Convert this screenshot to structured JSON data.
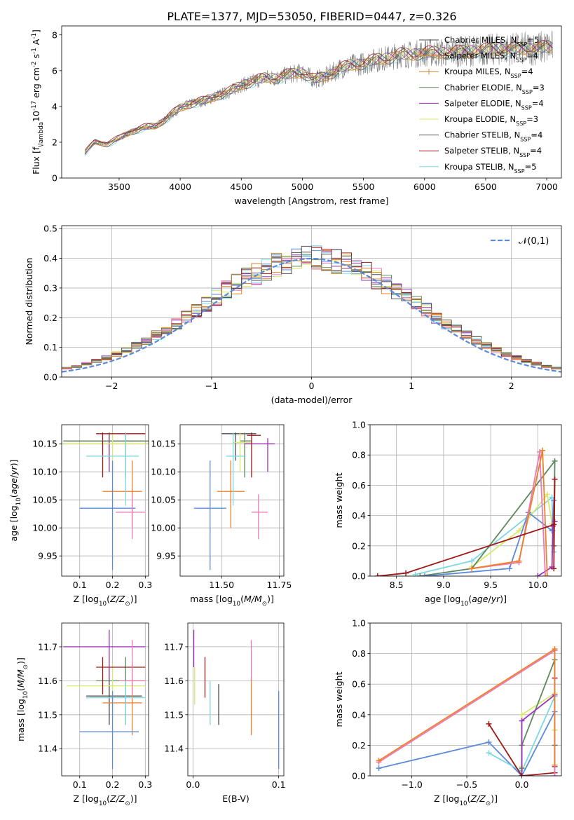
{
  "figure_title": "PLATE=1377, MJD=53050, FIBERID=0447, z=0.326",
  "colors": {
    "Chabrier MILES": "#4a4a4a",
    "Salpeter MILES": "#ef7f28",
    "Kroupa MILES": "#c6862d",
    "Chabrier ELODIE": "#5c8a5c",
    "Salpeter ELODIE": "#9b35b8",
    "Kroupa ELODIE": "#d8e86a",
    "Chabrier STELIB": "#555555",
    "Salpeter STELIB": "#a01818",
    "Kroupa STELIB": "#7fd7e0",
    "extra_1": "#5b8bd9",
    "extra_2": "#e87bb8",
    "gaussian": "#5b8bd9",
    "observed": "#808080"
  },
  "chart_data": [
    {
      "type": "line",
      "id": "spectrum",
      "xlabel": "wavelength [Angstrom, rest frame]",
      "ylabel": "Flux [f$_\\lambda$10$^{-17}$ erg cm$^{-2}$ s$^{-1}$ A$^{-1}$]",
      "xlim": [
        3030,
        7120
      ],
      "ylim": [
        0,
        8.5
      ],
      "xticks": [
        3500,
        4000,
        4500,
        5000,
        5500,
        6000,
        6500,
        7000
      ],
      "yticks": [
        0,
        2,
        4,
        6,
        8
      ],
      "wavelength_range": [
        3220,
        7050
      ],
      "continuum": {
        "x": [
          3220,
          3300,
          3400,
          3500,
          3600,
          3700,
          3800,
          3900,
          4000,
          4100,
          4200,
          4300,
          4400,
          4500,
          4600,
          4700,
          4800,
          4900,
          5000,
          5100,
          5200,
          5300,
          5400,
          5500,
          5600,
          5700,
          5800,
          5900,
          6000,
          6200,
          6400,
          6600,
          6800,
          7000,
          7050
        ],
        "y": [
          1.4,
          2.0,
          1.9,
          2.2,
          2.6,
          2.8,
          2.9,
          3.4,
          3.9,
          4.2,
          4.3,
          4.6,
          4.8,
          5.2,
          5.4,
          5.6,
          5.6,
          5.8,
          5.9,
          5.5,
          5.7,
          6.1,
          6.3,
          6.4,
          6.6,
          6.7,
          6.9,
          6.9,
          7.0,
          7.0,
          7.1,
          7.2,
          7.2,
          7.3,
          7.3
        ]
      },
      "legend": [
        {
          "label": "Chabrier MILES, N$_{SSP}$=5"
        },
        {
          "label": "Salpeter MILES, N$_{SSP}$=4"
        },
        {
          "label": "Kroupa MILES, N$_{SSP}$=4"
        },
        {
          "label": "Chabrier ELODIE, N$_{SSP}$=3"
        },
        {
          "label": "Salpeter ELODIE, N$_{SSP}$=4"
        },
        {
          "label": "Kroupa ELODIE, N$_{SSP}$=3"
        },
        {
          "label": "Chabrier STELIB, N$_{SSP}$=4"
        },
        {
          "label": "Salpeter STELIB, N$_{SSP}$=4"
        },
        {
          "label": "Kroupa STELIB, N$_{SSP}$=5"
        }
      ],
      "legend_placement": "upper right"
    },
    {
      "type": "line",
      "id": "residuals",
      "xlabel": "(data-model)/error",
      "ylabel": "Normed distribution",
      "xlim": [
        -2.5,
        2.5
      ],
      "ylim": [
        0,
        0.51
      ],
      "xticks": [
        -2,
        -1,
        0,
        1,
        2
      ],
      "yticks": [
        0.0,
        0.1,
        0.2,
        0.3,
        0.4,
        0.5
      ],
      "grid": true,
      "bin_width": 0.1,
      "series_note": "step histograms of normalized residuals for 11 fits",
      "gaussian_label": "$\\mathcal{N}(0,1)$",
      "legend_placement": "upper right"
    },
    {
      "type": "scatter",
      "id": "age_vs_Z",
      "xlabel": "Z [log$_{10}$($Z/Z_\\odot$)]",
      "ylabel": "age  [log$_{10}$($age/yr$)]",
      "xlim": [
        0.045,
        0.31
      ],
      "ylim": [
        9.914,
        10.184
      ],
      "xticks": [
        0.1,
        0.2,
        0.3
      ],
      "yticks": [
        9.95,
        10.0,
        10.05,
        10.1,
        10.15
      ],
      "grid": true,
      "points": [
        {
          "c": "Chabrier MILES",
          "x": 0.19,
          "y": 10.155,
          "xe": [
            0.06,
            0.31
          ],
          "ye": [
            10.12,
            10.17
          ]
        },
        {
          "c": "Salpeter MILES",
          "x": 0.26,
          "y": 10.065,
          "xe": [
            0.17,
            0.29
          ],
          "ye": [
            10.0,
            10.12
          ]
        },
        {
          "c": "Chabrier ELODIE",
          "x": 0.24,
          "y": 10.155,
          "xe": [
            0.05,
            0.31
          ],
          "ye": [
            10.09,
            10.17
          ]
        },
        {
          "c": "Salpeter ELODIE",
          "x": 0.19,
          "y": 10.15,
          "xe": [
            0.05,
            0.31
          ],
          "ye": [
            10.1,
            10.16
          ]
        },
        {
          "c": "Kroupa ELODIE",
          "x": 0.2,
          "y": 10.15,
          "xe": [
            0.05,
            0.31
          ],
          "ye": [
            10.1,
            10.17
          ]
        },
        {
          "c": "Salpeter STELIB",
          "x": 0.17,
          "y": 10.168,
          "xe": [
            0.15,
            0.3
          ],
          "ye": [
            10.09,
            10.17
          ]
        },
        {
          "c": "Kroupa STELIB",
          "x": 0.24,
          "y": 10.128,
          "xe": [
            0.12,
            0.28
          ],
          "ye": [
            10.04,
            10.17
          ]
        },
        {
          "c": "extra_1",
          "x": 0.2,
          "y": 10.035,
          "xe": [
            0.1,
            0.27
          ],
          "ye": [
            9.925,
            10.12
          ]
        },
        {
          "c": "extra_2",
          "x": 0.26,
          "y": 10.028,
          "xe": [
            0.21,
            0.3
          ],
          "ye": [
            9.98,
            10.06
          ]
        }
      ]
    },
    {
      "type": "scatter",
      "id": "age_vs_mass",
      "xlabel": "mass [log$_{10}$($M/M_\\odot$)]",
      "ylabel": "",
      "xlim": [
        11.32,
        11.77
      ],
      "ylim": [
        9.914,
        10.184
      ],
      "xticks": [
        11.5,
        11.75
      ],
      "yticks": [
        9.95,
        10.0,
        10.05,
        10.1,
        10.15
      ],
      "grid": true,
      "points": [
        {
          "c": "Chabrier MILES",
          "x": 11.56,
          "y": 10.168,
          "xe": [
            11.5,
            11.65
          ],
          "ye": [
            10.12,
            10.17
          ]
        },
        {
          "c": "Salpeter MILES",
          "x": 11.54,
          "y": 10.065,
          "xe": [
            11.48,
            11.6
          ],
          "ye": [
            10.0,
            10.12
          ]
        },
        {
          "c": "Chabrier ELODIE",
          "x": 11.6,
          "y": 10.155,
          "xe": [
            11.58,
            11.63
          ],
          "ye": [
            10.09,
            10.17
          ]
        },
        {
          "c": "Salpeter ELODIE",
          "x": 11.7,
          "y": 10.15,
          "xe": [
            11.6,
            11.73
          ],
          "ye": [
            10.1,
            10.16
          ]
        },
        {
          "c": "Kroupa ELODIE",
          "x": 11.58,
          "y": 10.152,
          "xe": [
            11.55,
            11.63
          ],
          "ye": [
            10.1,
            10.17
          ]
        },
        {
          "c": "Salpeter STELIB",
          "x": 11.63,
          "y": 10.165,
          "xe": [
            11.61,
            11.67
          ],
          "ye": [
            10.09,
            10.17
          ]
        },
        {
          "c": "Kroupa STELIB",
          "x": 11.55,
          "y": 10.128,
          "xe": [
            11.52,
            11.6
          ],
          "ye": [
            10.04,
            10.17
          ]
        },
        {
          "c": "extra_1",
          "x": 11.45,
          "y": 10.035,
          "xe": [
            11.38,
            11.52
          ],
          "ye": [
            9.925,
            10.12
          ]
        },
        {
          "c": "extra_2",
          "x": 11.66,
          "y": 10.028,
          "xe": [
            11.63,
            11.7
          ],
          "ye": [
            9.98,
            10.06
          ]
        }
      ]
    },
    {
      "type": "line",
      "id": "weight_vs_age",
      "xlabel": "age  [log$_{10}$($age/yr$)]",
      "ylabel": "mass weight",
      "xlim": [
        8.22,
        10.25
      ],
      "ylim": [
        0,
        1.0
      ],
      "xticks": [
        8.5,
        9.0,
        9.5,
        10.0
      ],
      "yticks": [
        0.0,
        0.2,
        0.4,
        0.6,
        0.8,
        1.0
      ],
      "grid": true,
      "series": [
        {
          "c": "Kroupa STELIB",
          "x": [
            8.7,
            9.3,
            10.15,
            10.16,
            10.17
          ],
          "y": [
            0.01,
            0.1,
            0.52,
            0.3,
            0.16
          ]
        },
        {
          "c": "Kroupa ELODIE",
          "x": [
            9.3,
            9.8,
            10.1,
            10.15
          ],
          "y": [
            0.06,
            0.3,
            0.54,
            0.35
          ]
        },
        {
          "c": "Chabrier ELODIE",
          "x": [
            8.75,
            9.3,
            10.18,
            10.17
          ],
          "y": [
            0.0,
            0.05,
            0.76,
            0.2
          ]
        },
        {
          "c": "extra_1",
          "x": [
            8.8,
            9.7,
            9.9,
            10.15,
            10.17
          ],
          "y": [
            0.0,
            0.05,
            0.42,
            0.3,
            0.5
          ]
        },
        {
          "c": "Salpeter ELODIE",
          "x": [
            10.0,
            10.15,
            10.16,
            10.18
          ],
          "y": [
            0.0,
            0.06,
            0.33,
            0.36
          ]
        },
        {
          "c": "extra_2",
          "x": [
            9.3,
            9.8,
            10.02,
            10.08
          ],
          "y": [
            0.05,
            0.09,
            0.82,
            0.0
          ]
        },
        {
          "c": "Salpeter MILES",
          "x": [
            9.3,
            9.8,
            10.05,
            10.1
          ],
          "y": [
            0.05,
            0.1,
            0.83,
            0.0
          ]
        },
        {
          "c": "Salpeter STELIB",
          "x": [
            8.3,
            8.6,
            10.17,
            10.18,
            10.17
          ],
          "y": [
            0.0,
            0.02,
            0.34,
            0.64,
            0.05
          ]
        }
      ]
    },
    {
      "type": "scatter",
      "id": "mass_vs_Z",
      "xlabel": "Z [log$_{10}$($Z/Z_\\odot$)]",
      "ylabel": "mass [log$_{10}$($M/M_\\odot$)]",
      "xlim": [
        0.045,
        0.31
      ],
      "ylim": [
        11.32,
        11.77
      ],
      "xticks": [
        0.1,
        0.2,
        0.3
      ],
      "yticks": [
        11.4,
        11.5,
        11.6,
        11.7
      ],
      "grid": true,
      "points": [
        {
          "c": "Chabrier MILES",
          "x": 0.19,
          "y": 11.555,
          "xe": [
            0.12,
            0.29
          ],
          "ye": [
            11.47,
            11.64
          ]
        },
        {
          "c": "Salpeter MILES",
          "x": 0.26,
          "y": 11.535,
          "xe": [
            0.17,
            0.29
          ],
          "ye": [
            11.44,
            11.65
          ]
        },
        {
          "c": "Chabrier ELODIE",
          "x": 0.24,
          "y": 11.6,
          "xe": [
            0.15,
            0.3
          ],
          "ye": [
            11.47,
            11.67
          ]
        },
        {
          "c": "Salpeter ELODIE",
          "x": 0.19,
          "y": 11.7,
          "xe": [
            0.05,
            0.3
          ],
          "ye": [
            11.6,
            11.75
          ]
        },
        {
          "c": "Kroupa ELODIE",
          "x": 0.2,
          "y": 11.585,
          "xe": [
            0.06,
            0.3
          ],
          "ye": [
            11.5,
            11.65
          ]
        },
        {
          "c": "Salpeter STELIB",
          "x": 0.17,
          "y": 11.64,
          "xe": [
            0.15,
            0.3
          ],
          "ye": [
            11.56,
            11.67
          ]
        },
        {
          "c": "Kroupa STELIB",
          "x": 0.24,
          "y": 11.55,
          "xe": [
            0.12,
            0.3
          ],
          "ye": [
            11.47,
            11.6
          ]
        },
        {
          "c": "extra_1",
          "x": 0.2,
          "y": 11.45,
          "xe": [
            0.1,
            0.28
          ],
          "ye": [
            11.34,
            11.57
          ]
        },
        {
          "c": "extra_2",
          "x": 0.26,
          "y": 11.6,
          "xe": [
            0.22,
            0.3
          ],
          "ye": [
            11.56,
            11.72
          ]
        }
      ]
    },
    {
      "type": "scatter",
      "id": "mass_vs_EBV",
      "xlabel": "E(B-V)",
      "ylabel": "",
      "xlim": [
        -0.006,
        0.106
      ],
      "ylim": [
        11.32,
        11.77
      ],
      "xticks": [
        0.0,
        0.1
      ],
      "yticks": [
        11.4,
        11.5,
        11.6,
        11.7
      ],
      "grid": true,
      "segments": [
        {
          "c": "Salpeter ELODIE",
          "x": 0.001,
          "y1": 11.64,
          "y2": 11.75
        },
        {
          "c": "Kroupa ELODIE",
          "x": 0.002,
          "y1": 11.53,
          "y2": 11.64
        },
        {
          "c": "Salpeter STELIB",
          "x": 0.014,
          "y1": 11.55,
          "y2": 11.67
        },
        {
          "c": "Kroupa STELIB",
          "x": 0.02,
          "y1": 11.47,
          "y2": 11.6
        },
        {
          "c": "Chabrier MILES",
          "x": 0.03,
          "y1": 11.47,
          "y2": 11.59
        },
        {
          "c": "Salpeter MILES",
          "x": 0.068,
          "y1": 11.44,
          "y2": 11.61
        },
        {
          "c": "extra_2",
          "x": 0.068,
          "y1": 11.6,
          "y2": 11.72
        },
        {
          "c": "extra_1",
          "x": 0.1,
          "y1": 11.34,
          "y2": 11.57
        }
      ]
    },
    {
      "type": "line",
      "id": "weight_vs_Z",
      "xlabel": "Z [log$_{10}$($Z/Z_\\odot$)]",
      "ylabel": "mass weight",
      "xlim": [
        -1.38,
        0.36
      ],
      "ylim": [
        0,
        1.0
      ],
      "xticks": [
        -1.0,
        -0.5,
        0.0
      ],
      "yticks": [
        0.0,
        0.2,
        0.4,
        0.6,
        0.8,
        1.0
      ],
      "grid": true,
      "series": [
        {
          "c": "extra_1",
          "x": [
            -1.3,
            -0.3,
            0.0,
            0.3
          ],
          "y": [
            0.05,
            0.22,
            0.0,
            0.42
          ]
        },
        {
          "c": "Kroupa STELIB",
          "x": [
            -0.3,
            0.0,
            0.3,
            0.3
          ],
          "y": [
            0.15,
            0.03,
            0.52,
            0.3
          ]
        },
        {
          "c": "Kroupa ELODIE",
          "x": [
            0.0,
            0.0,
            0.3,
            0.3
          ],
          "y": [
            0.06,
            0.4,
            0.54,
            0.3
          ]
        },
        {
          "c": "Chabrier ELODIE",
          "x": [
            0.0,
            0.0,
            0.3,
            0.3
          ],
          "y": [
            0.05,
            0.2,
            0.76,
            0.2
          ]
        },
        {
          "c": "Salpeter ELODIE",
          "x": [
            0.0,
            0.0,
            0.3,
            0.3
          ],
          "y": [
            0.0,
            0.36,
            0.53,
            0.06
          ]
        },
        {
          "c": "Salpeter STELIB",
          "x": [
            -0.3,
            0.0,
            0.3,
            0.3
          ],
          "y": [
            0.34,
            0.0,
            0.02,
            0.64
          ]
        },
        {
          "c": "extra_2",
          "x": [
            -1.3,
            0.3,
            0.3
          ],
          "y": [
            0.09,
            0.82,
            0.0
          ]
        },
        {
          "c": "Salpeter MILES",
          "x": [
            -1.3,
            0.3,
            0.3
          ],
          "y": [
            0.1,
            0.83,
            0.07
          ]
        }
      ]
    }
  ]
}
